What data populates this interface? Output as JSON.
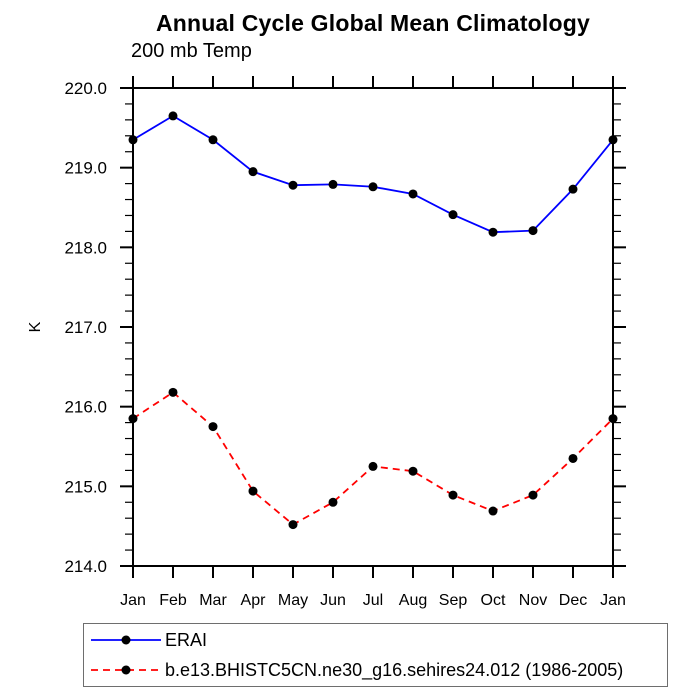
{
  "chart_data": {
    "type": "line",
    "title": "Annual Cycle Global Mean Climatology",
    "subtitle": "200 mb Temp",
    "ylabel": "K",
    "xlabel": "",
    "categories": [
      "Jan",
      "Feb",
      "Mar",
      "Apr",
      "May",
      "Jun",
      "Jul",
      "Aug",
      "Sep",
      "Oct",
      "Nov",
      "Dec",
      "Jan"
    ],
    "ylim": [
      214.0,
      220.0
    ],
    "ytick_values": [
      220.0,
      219.0,
      218.0,
      217.0,
      216.0,
      215.0,
      214.0
    ],
    "ytick_labels": [
      "220.0",
      "219.0",
      "218.0",
      "217.0",
      "216.0",
      "215.0",
      "214.0"
    ],
    "y_minor_step": 0.2,
    "grid": false,
    "frame": true,
    "tick_direction": "outward",
    "legend_position": "bottom-left",
    "series": [
      {
        "name": "ERAI",
        "color": "#0000ff",
        "line_style": "solid",
        "marker": "filled-circle",
        "marker_color": "#000000",
        "values": [
          219.35,
          219.65,
          219.35,
          218.95,
          218.78,
          218.79,
          218.76,
          218.67,
          218.41,
          218.19,
          218.21,
          218.73,
          219.35
        ]
      },
      {
        "name": "b.e13.BHISTC5CN.ne30_g16.sehires24.012 (1986-2005)",
        "color": "#ff0000",
        "line_style": "dashed",
        "marker": "filled-circle",
        "marker_color": "#000000",
        "values": [
          215.85,
          216.18,
          215.75,
          214.94,
          214.52,
          214.8,
          215.25,
          215.19,
          214.89,
          214.69,
          214.89,
          215.35,
          215.85
        ]
      }
    ]
  }
}
